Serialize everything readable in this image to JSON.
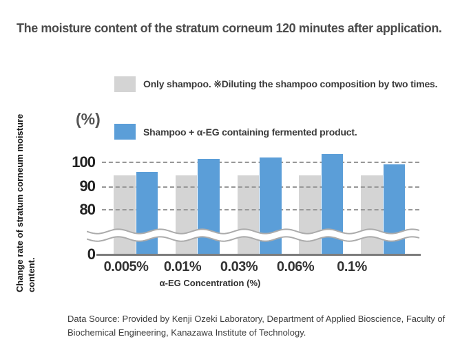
{
  "title": "The moisture content of the stratum corneum 120 minutes after application.",
  "legend": [
    {
      "label": "Only shampoo. ※Diluting the shampoo composition by two times.",
      "color": "#d4d4d4"
    },
    {
      "label": "Shampoo + α-EG containing fermented product.",
      "color": "#5b9ed8"
    }
  ],
  "chart_data": {
    "type": "bar",
    "title": "The moisture content of the stratum corneum 120 minutes after application.",
    "categories": [
      "0.005%",
      "0.01%",
      "0.03%",
      "0.06%",
      "0.1%"
    ],
    "series": [
      {
        "name": "Only shampoo. ※Diluting the shampoo composition by two times.",
        "color": "#d4d4d4",
        "values": [
          94.5,
          94.5,
          94.5,
          94.5,
          94.5
        ]
      },
      {
        "name": "Shampoo + α-EG containing fermented product.",
        "color": "#5b9ed8",
        "values": [
          96,
          101.5,
          102,
          103.5,
          99
        ]
      }
    ],
    "unit_label": "(%)",
    "ylabel": "Change rate of stratum corneum moisture content.",
    "xlabel": "α-EG Concentration (%)",
    "yticks": [
      "100",
      "90",
      "80",
      "0"
    ],
    "ylim_shown": [
      0,
      105
    ],
    "axis_break": true,
    "grid": "horizontal-dashed",
    "legend_position": "top"
  },
  "footer": {
    "source": "Data Source: Provided by Kenji Ozeki Laboratory, Department of Applied Bioscience, Faculty of Biochemical Engineering, Kanazawa Institute of Technology."
  }
}
